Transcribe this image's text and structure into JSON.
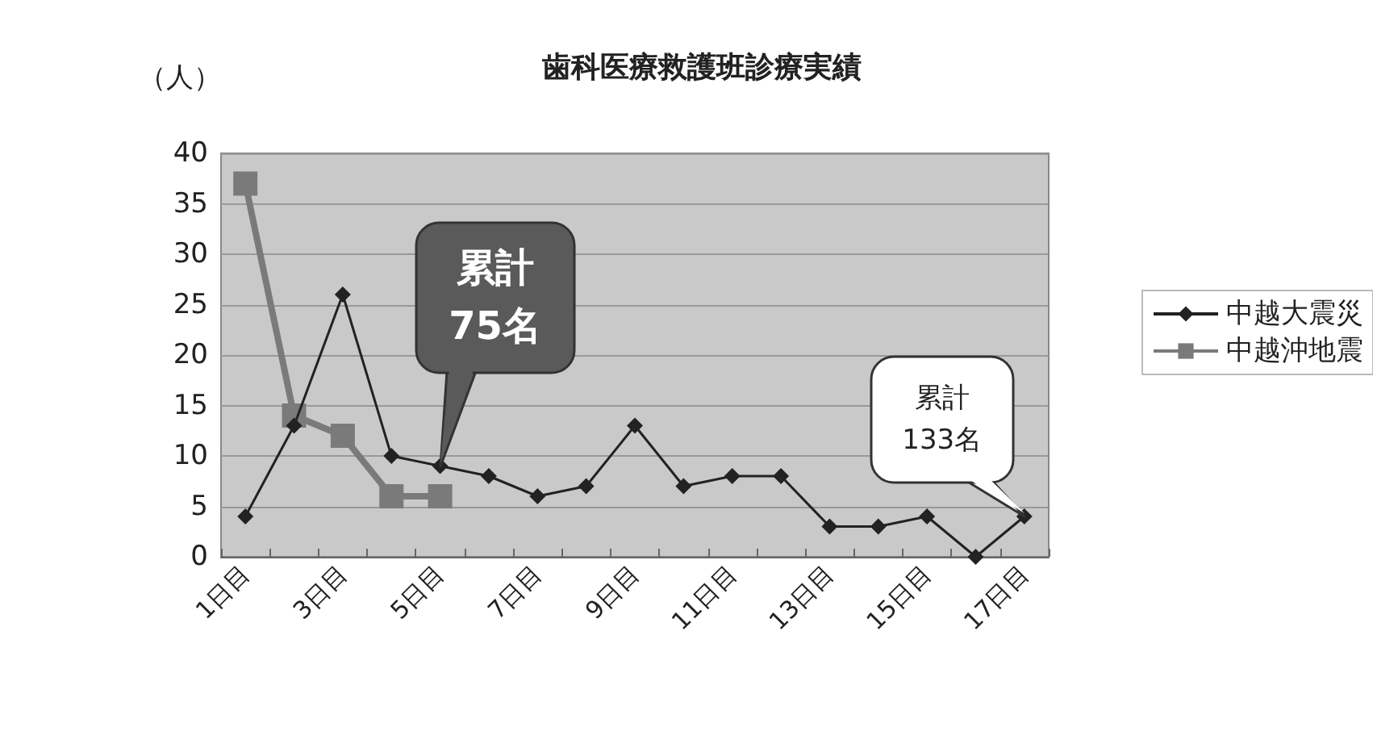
{
  "chart_data": {
    "type": "line",
    "title": "歯科医療救護班診療実績",
    "ylabel": "（人）",
    "categories": [
      "1日目",
      null,
      "3日目",
      null,
      "5日目",
      null,
      "7日目",
      null,
      "9日目",
      null,
      "11日目",
      null,
      "13日目",
      null,
      "15日目",
      null,
      "17日目"
    ],
    "series": [
      {
        "name": "中越大震災",
        "color": "#222222",
        "marker": "diamond",
        "values": [
          4,
          13,
          26,
          10,
          9,
          8,
          6,
          7,
          13,
          7,
          8,
          8,
          3,
          3,
          4,
          0,
          4
        ]
      },
      {
        "name": "中越沖地震",
        "color": "#7a7a7a",
        "marker": "square",
        "values": [
          37,
          14,
          12,
          6,
          6,
          null,
          null,
          null,
          null,
          null,
          null,
          null,
          null,
          null,
          null,
          null,
          null
        ]
      }
    ],
    "ylim": [
      0,
      40
    ],
    "yticks": [
      0,
      5,
      10,
      15,
      20,
      25,
      30,
      35,
      40
    ],
    "grid": "y",
    "legend": "right",
    "annotations": [
      {
        "text": "累計\n75名",
        "x": "5日目",
        "y": 9
      },
      {
        "text": "累計\n133名",
        "x": "17日目",
        "y": 4
      }
    ]
  }
}
